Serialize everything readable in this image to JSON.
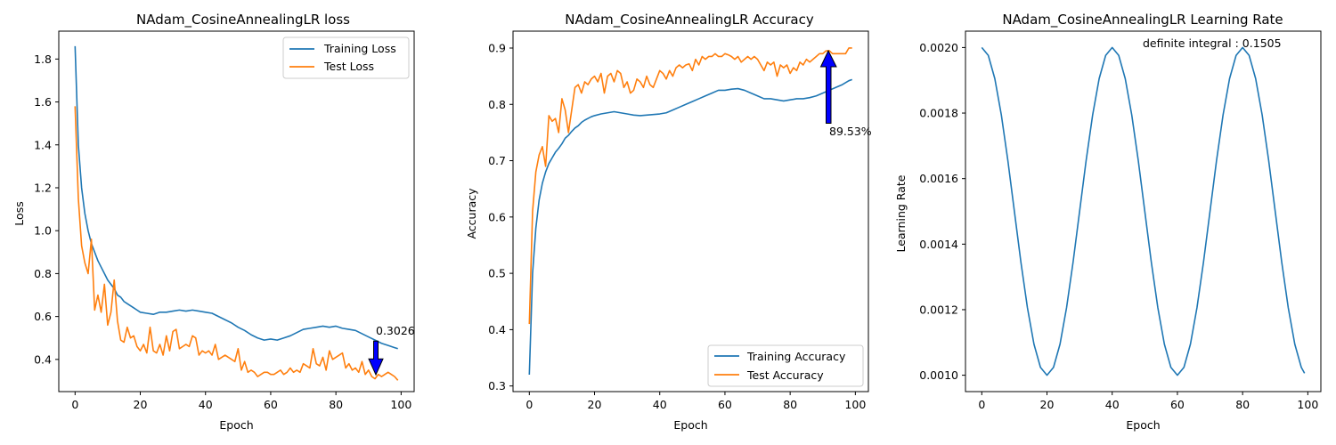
{
  "chart_data": [
    {
      "type": "line",
      "title": "NAdam_CosineAnnealingLR loss",
      "xlabel": "Epoch",
      "ylabel": "Loss",
      "xlim": [
        -5,
        104
      ],
      "ylim": [
        0.25,
        1.93
      ],
      "xticks": [
        0,
        20,
        40,
        60,
        80,
        100
      ],
      "yticks": [
        0.4,
        0.6,
        0.8,
        1.0,
        1.2,
        1.4,
        1.6,
        1.8
      ],
      "ytick_labels": [
        "0.4",
        "0.6",
        "0.8",
        "1.0",
        "1.2",
        "1.4",
        "1.6",
        "1.8"
      ],
      "grid": false,
      "legend": "top-right",
      "annotation": {
        "text": "0.3026",
        "x": 92,
        "y": 0.3026,
        "arrow": "down",
        "color": "#0000ff"
      },
      "series": [
        {
          "name": "Training Loss",
          "color": "#1f77b4",
          "x": [
            0,
            1,
            2,
            3,
            4,
            5,
            6,
            7,
            8,
            9,
            10,
            11,
            12,
            13,
            14,
            15,
            16,
            17,
            18,
            19,
            20,
            22,
            24,
            26,
            28,
            30,
            32,
            34,
            36,
            38,
            40,
            42,
            44,
            46,
            48,
            50,
            52,
            54,
            56,
            58,
            60,
            62,
            64,
            66,
            68,
            70,
            72,
            74,
            76,
            78,
            80,
            82,
            84,
            86,
            88,
            90,
            92,
            94,
            96,
            98,
            99
          ],
          "values": [
            1.86,
            1.4,
            1.2,
            1.08,
            1.0,
            0.94,
            0.9,
            0.86,
            0.83,
            0.8,
            0.77,
            0.75,
            0.73,
            0.7,
            0.69,
            0.67,
            0.66,
            0.65,
            0.64,
            0.63,
            0.62,
            0.615,
            0.61,
            0.62,
            0.62,
            0.625,
            0.63,
            0.625,
            0.63,
            0.625,
            0.62,
            0.615,
            0.6,
            0.585,
            0.57,
            0.55,
            0.535,
            0.515,
            0.5,
            0.49,
            0.495,
            0.49,
            0.5,
            0.51,
            0.525,
            0.54,
            0.545,
            0.55,
            0.555,
            0.55,
            0.555,
            0.545,
            0.54,
            0.535,
            0.52,
            0.505,
            0.49,
            0.475,
            0.465,
            0.455,
            0.45
          ]
        },
        {
          "name": "Test Loss",
          "color": "#ff7f0e",
          "x": [
            0,
            1,
            2,
            3,
            4,
            5,
            6,
            7,
            8,
            9,
            10,
            11,
            12,
            13,
            14,
            15,
            16,
            17,
            18,
            19,
            20,
            21,
            22,
            23,
            24,
            25,
            26,
            27,
            28,
            29,
            30,
            31,
            32,
            33,
            34,
            35,
            36,
            37,
            38,
            39,
            40,
            41,
            42,
            43,
            44,
            45,
            46,
            47,
            48,
            49,
            50,
            51,
            52,
            53,
            54,
            55,
            56,
            57,
            58,
            59,
            60,
            61,
            62,
            63,
            64,
            65,
            66,
            67,
            68,
            69,
            70,
            71,
            72,
            73,
            74,
            75,
            76,
            77,
            78,
            79,
            80,
            81,
            82,
            83,
            84,
            85,
            86,
            87,
            88,
            89,
            90,
            91,
            92,
            93,
            94,
            95,
            96,
            97,
            98,
            99
          ],
          "values": [
            1.58,
            1.15,
            0.93,
            0.85,
            0.8,
            0.96,
            0.63,
            0.7,
            0.62,
            0.75,
            0.56,
            0.62,
            0.77,
            0.58,
            0.49,
            0.48,
            0.55,
            0.5,
            0.51,
            0.46,
            0.44,
            0.47,
            0.43,
            0.55,
            0.44,
            0.43,
            0.47,
            0.42,
            0.51,
            0.44,
            0.53,
            0.54,
            0.45,
            0.46,
            0.47,
            0.46,
            0.51,
            0.5,
            0.42,
            0.44,
            0.43,
            0.44,
            0.42,
            0.47,
            0.4,
            0.41,
            0.42,
            0.41,
            0.4,
            0.39,
            0.45,
            0.35,
            0.39,
            0.34,
            0.35,
            0.34,
            0.32,
            0.33,
            0.34,
            0.34,
            0.33,
            0.33,
            0.34,
            0.35,
            0.33,
            0.34,
            0.36,
            0.34,
            0.35,
            0.34,
            0.38,
            0.37,
            0.36,
            0.45,
            0.38,
            0.37,
            0.41,
            0.35,
            0.44,
            0.4,
            0.41,
            0.42,
            0.43,
            0.36,
            0.38,
            0.35,
            0.36,
            0.34,
            0.39,
            0.33,
            0.35,
            0.32,
            0.31,
            0.33,
            0.32,
            0.33,
            0.34,
            0.33,
            0.32,
            0.3026
          ]
        }
      ]
    },
    {
      "type": "line",
      "title": "NAdam_CosineAnnealingLR Accuracy",
      "xlabel": "Epoch",
      "ylabel": "Accuracy",
      "xlim": [
        -5,
        104
      ],
      "ylim": [
        0.29,
        0.93
      ],
      "xticks": [
        0,
        20,
        40,
        60,
        80,
        100
      ],
      "yticks": [
        0.3,
        0.4,
        0.5,
        0.6,
        0.7,
        0.8,
        0.9
      ],
      "ytick_labels": [
        "0.3",
        "0.4",
        "0.5",
        "0.6",
        "0.7",
        "0.8",
        "0.9"
      ],
      "grid": false,
      "legend": "bottom-right",
      "annotation": {
        "text": "89.53%",
        "x": 92,
        "y": 0.8953,
        "arrow": "up",
        "color": "#0000ff"
      },
      "series": [
        {
          "name": "Training Accuracy",
          "color": "#1f77b4",
          "x": [
            0,
            1,
            2,
            3,
            4,
            5,
            6,
            7,
            8,
            9,
            10,
            11,
            12,
            13,
            14,
            15,
            16,
            17,
            18,
            19,
            20,
            22,
            24,
            26,
            28,
            30,
            32,
            34,
            36,
            38,
            40,
            42,
            44,
            46,
            48,
            50,
            52,
            54,
            56,
            58,
            60,
            62,
            64,
            66,
            68,
            70,
            72,
            74,
            76,
            78,
            80,
            82,
            84,
            86,
            88,
            90,
            92,
            94,
            96,
            98,
            99
          ],
          "values": [
            0.32,
            0.5,
            0.58,
            0.63,
            0.66,
            0.68,
            0.695,
            0.705,
            0.715,
            0.722,
            0.73,
            0.74,
            0.745,
            0.752,
            0.758,
            0.762,
            0.768,
            0.772,
            0.775,
            0.778,
            0.78,
            0.783,
            0.785,
            0.787,
            0.785,
            0.783,
            0.781,
            0.78,
            0.781,
            0.782,
            0.783,
            0.785,
            0.79,
            0.795,
            0.8,
            0.805,
            0.81,
            0.815,
            0.82,
            0.825,
            0.825,
            0.827,
            0.828,
            0.825,
            0.82,
            0.815,
            0.81,
            0.81,
            0.808,
            0.806,
            0.808,
            0.81,
            0.81,
            0.812,
            0.815,
            0.82,
            0.825,
            0.83,
            0.835,
            0.842,
            0.844
          ]
        },
        {
          "name": "Test Accuracy",
          "color": "#ff7f0e",
          "x": [
            0,
            1,
            2,
            3,
            4,
            5,
            6,
            7,
            8,
            9,
            10,
            11,
            12,
            13,
            14,
            15,
            16,
            17,
            18,
            19,
            20,
            21,
            22,
            23,
            24,
            25,
            26,
            27,
            28,
            29,
            30,
            31,
            32,
            33,
            34,
            35,
            36,
            37,
            38,
            39,
            40,
            41,
            42,
            43,
            44,
            45,
            46,
            47,
            48,
            49,
            50,
            51,
            52,
            53,
            54,
            55,
            56,
            57,
            58,
            59,
            60,
            61,
            62,
            63,
            64,
            65,
            66,
            67,
            68,
            69,
            70,
            71,
            72,
            73,
            74,
            75,
            76,
            77,
            78,
            79,
            80,
            81,
            82,
            83,
            84,
            85,
            86,
            87,
            88,
            89,
            90,
            91,
            92,
            93,
            94,
            95,
            96,
            97,
            98,
            99
          ],
          "values": [
            0.41,
            0.61,
            0.68,
            0.71,
            0.725,
            0.69,
            0.78,
            0.77,
            0.775,
            0.75,
            0.81,
            0.79,
            0.75,
            0.79,
            0.83,
            0.835,
            0.82,
            0.84,
            0.835,
            0.845,
            0.85,
            0.84,
            0.855,
            0.82,
            0.85,
            0.855,
            0.84,
            0.86,
            0.855,
            0.83,
            0.84,
            0.82,
            0.825,
            0.845,
            0.84,
            0.83,
            0.85,
            0.835,
            0.83,
            0.845,
            0.86,
            0.855,
            0.845,
            0.86,
            0.85,
            0.865,
            0.87,
            0.865,
            0.87,
            0.872,
            0.86,
            0.88,
            0.87,
            0.885,
            0.88,
            0.885,
            0.885,
            0.89,
            0.885,
            0.885,
            0.89,
            0.888,
            0.885,
            0.88,
            0.885,
            0.875,
            0.88,
            0.885,
            0.88,
            0.885,
            0.88,
            0.87,
            0.86,
            0.875,
            0.87,
            0.875,
            0.85,
            0.87,
            0.865,
            0.87,
            0.855,
            0.865,
            0.86,
            0.875,
            0.87,
            0.88,
            0.875,
            0.88,
            0.885,
            0.89,
            0.89,
            0.895,
            0.8953,
            0.89,
            0.89,
            0.89,
            0.89,
            0.89,
            0.9,
            0.9
          ]
        }
      ]
    },
    {
      "type": "line",
      "title": "NAdam_CosineAnnealingLR Learning Rate",
      "xlabel": "Epoch",
      "ylabel": "Learning Rate",
      "xlim": [
        -5,
        104
      ],
      "ylim": [
        0.00095,
        0.00205
      ],
      "xticks": [
        0,
        20,
        40,
        60,
        80,
        100
      ],
      "yticks": [
        0.001,
        0.0012,
        0.0014,
        0.0016,
        0.0018,
        0.002
      ],
      "ytick_labels": [
        "0.0010",
        "0.0012",
        "0.0014",
        "0.0016",
        "0.0018",
        "0.0020"
      ],
      "grid": false,
      "annotation": {
        "text": "definite integral : 0.1505",
        "x": 50,
        "y": 0.002
      },
      "series": [
        {
          "name": "",
          "color": "#1f77b4",
          "x": [
            0,
            2,
            4,
            6,
            8,
            10,
            12,
            14,
            16,
            18,
            20,
            22,
            24,
            26,
            28,
            30,
            32,
            34,
            36,
            38,
            40,
            42,
            44,
            46,
            48,
            50,
            52,
            54,
            56,
            58,
            60,
            62,
            64,
            66,
            68,
            70,
            72,
            74,
            76,
            78,
            80,
            82,
            84,
            86,
            88,
            90,
            92,
            94,
            96,
            98,
            99
          ],
          "values": [
            0.002,
            0.001976,
            0.001905,
            0.001794,
            0.001655,
            0.0015,
            0.001345,
            0.001206,
            0.001095,
            0.001024,
            0.001,
            0.001024,
            0.001095,
            0.001206,
            0.001345,
            0.0015,
            0.001655,
            0.001794,
            0.001905,
            0.001976,
            0.002,
            0.001976,
            0.001905,
            0.001794,
            0.001655,
            0.0015,
            0.001345,
            0.001206,
            0.001095,
            0.001024,
            0.001,
            0.001024,
            0.001095,
            0.001206,
            0.001345,
            0.0015,
            0.001655,
            0.001794,
            0.001905,
            0.001976,
            0.002,
            0.001976,
            0.001905,
            0.001794,
            0.001655,
            0.0015,
            0.001345,
            0.001206,
            0.001095,
            0.001024,
            0.001006
          ]
        }
      ]
    }
  ]
}
